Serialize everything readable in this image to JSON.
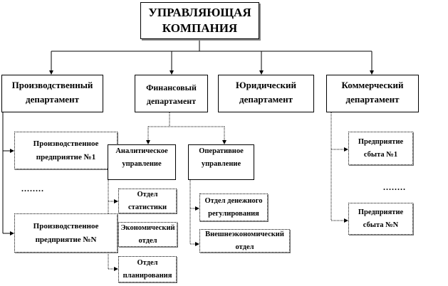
{
  "top": "УПРАВЛЯЮЩАЯ КОМПАНИЯ",
  "departments": [
    "Производственный департамент",
    "Финансовый департамент",
    "Юридический департамент",
    "Коммерческий департамент"
  ],
  "production": [
    "Производственное предприятие №1",
    "Производственное предприятие №N"
  ],
  "finance_units": [
    "Аналитическое управление",
    "Оперативное управление"
  ],
  "analytic_depts": [
    "Отдел статистики",
    "Экономический отдел",
    "Отдел планирования"
  ],
  "operative_depts": [
    "Отдел денежного регулирования",
    "Внешнеэкономический отдел"
  ],
  "commerce": [
    "Предприятие сбыта №1",
    "Предприятие сбыта №N"
  ],
  "ellipsis": "........"
}
